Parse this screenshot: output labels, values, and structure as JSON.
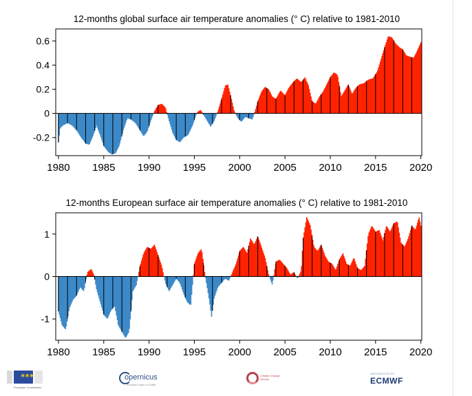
{
  "colors": {
    "warm": "#ff2200",
    "cold": "#3c89c8",
    "axis": "#000000"
  },
  "footer": {
    "eu": {
      "name": "European Commission"
    },
    "copernicus": {
      "word": "opernicus",
      "sub": "Europe's eyes on Earth"
    },
    "c3s": {
      "text": "Climate Change Service"
    },
    "ecmwf": {
      "top": "IMPLEMENTED BY",
      "word": "ECMWF"
    }
  },
  "chart_data": [
    {
      "type": "bar",
      "title": "12-months  global surface air temperature anomalies (° C) relative to 1981-2010",
      "xlabel": "",
      "ylabel": "",
      "xlim": [
        1979.7,
        2020.1
      ],
      "ylim": [
        -0.35,
        0.7
      ],
      "xticks": [
        1980,
        1985,
        1990,
        1995,
        2000,
        2005,
        2010,
        2015,
        2020
      ],
      "yticks": [
        -0.2,
        0,
        0.2,
        0.4,
        0.6
      ],
      "ytick_labels": [
        "-0.2",
        "0",
        "0.2",
        "0.4",
        "0.6"
      ],
      "grid": false,
      "series_points": [
        [
          1980.0,
          -0.24
        ],
        [
          1980.2,
          -0.12
        ],
        [
          1980.5,
          -0.1
        ],
        [
          1981.0,
          -0.08
        ],
        [
          1981.5,
          -0.1
        ],
        [
          1982.0,
          -0.14
        ],
        [
          1982.5,
          -0.2
        ],
        [
          1983.0,
          -0.25
        ],
        [
          1983.4,
          -0.26
        ],
        [
          1983.8,
          -0.19
        ],
        [
          1984.2,
          -0.1
        ],
        [
          1984.6,
          -0.18
        ],
        [
          1985.0,
          -0.27
        ],
        [
          1985.5,
          -0.32
        ],
        [
          1985.9,
          -0.34
        ],
        [
          1986.3,
          -0.33
        ],
        [
          1986.7,
          -0.27
        ],
        [
          1987.2,
          -0.13
        ],
        [
          1987.6,
          -0.04
        ],
        [
          1988.0,
          -0.05
        ],
        [
          1988.5,
          -0.08
        ],
        [
          1989.0,
          -0.14
        ],
        [
          1989.4,
          -0.19
        ],
        [
          1989.8,
          -0.15
        ],
        [
          1990.2,
          -0.06
        ],
        [
          1990.6,
          0.02
        ],
        [
          1991.0,
          0.07
        ],
        [
          1991.4,
          0.08
        ],
        [
          1991.8,
          0.05
        ],
        [
          1992.2,
          -0.06
        ],
        [
          1992.6,
          -0.16
        ],
        [
          1993.0,
          -0.22
        ],
        [
          1993.4,
          -0.24
        ],
        [
          1993.8,
          -0.2
        ],
        [
          1994.3,
          -0.18
        ],
        [
          1994.8,
          -0.1
        ],
        [
          1995.3,
          0.01
        ],
        [
          1995.7,
          0.03
        ],
        [
          1996.0,
          -0.01
        ],
        [
          1996.4,
          -0.06
        ],
        [
          1996.8,
          -0.11
        ],
        [
          1997.2,
          -0.06
        ],
        [
          1997.6,
          0.02
        ],
        [
          1998.0,
          0.12
        ],
        [
          1998.4,
          0.23
        ],
        [
          1998.7,
          0.24
        ],
        [
          1999.0,
          0.15
        ],
        [
          1999.4,
          0.02
        ],
        [
          1999.8,
          -0.04
        ],
        [
          2000.2,
          -0.07
        ],
        [
          2000.6,
          -0.03
        ],
        [
          2001.0,
          -0.04
        ],
        [
          2001.4,
          -0.05
        ],
        [
          2001.7,
          0.02
        ],
        [
          2002.0,
          0.1
        ],
        [
          2002.4,
          0.18
        ],
        [
          2002.8,
          0.22
        ],
        [
          2003.2,
          0.2
        ],
        [
          2003.6,
          0.14
        ],
        [
          2004.0,
          0.12
        ],
        [
          2004.5,
          0.19
        ],
        [
          2005.0,
          0.15
        ],
        [
          2005.4,
          0.21
        ],
        [
          2005.8,
          0.25
        ],
        [
          2006.3,
          0.29
        ],
        [
          2006.8,
          0.26
        ],
        [
          2007.2,
          0.3
        ],
        [
          2007.6,
          0.23
        ],
        [
          2008.0,
          0.1
        ],
        [
          2008.4,
          0.08
        ],
        [
          2008.8,
          0.14
        ],
        [
          2009.2,
          0.18
        ],
        [
          2009.6,
          0.24
        ],
        [
          2010.0,
          0.3
        ],
        [
          2010.4,
          0.34
        ],
        [
          2010.8,
          0.32
        ],
        [
          2011.2,
          0.14
        ],
        [
          2011.6,
          0.19
        ],
        [
          2012.0,
          0.24
        ],
        [
          2012.4,
          0.16
        ],
        [
          2012.8,
          0.21
        ],
        [
          2013.2,
          0.24
        ],
        [
          2013.7,
          0.25
        ],
        [
          2014.2,
          0.28
        ],
        [
          2014.7,
          0.29
        ],
        [
          2015.2,
          0.35
        ],
        [
          2015.6,
          0.45
        ],
        [
          2016.0,
          0.55
        ],
        [
          2016.4,
          0.64
        ],
        [
          2016.8,
          0.63
        ],
        [
          2017.2,
          0.58
        ],
        [
          2017.6,
          0.55
        ],
        [
          2018.0,
          0.53
        ],
        [
          2018.4,
          0.48
        ],
        [
          2018.8,
          0.47
        ],
        [
          2019.2,
          0.46
        ],
        [
          2019.6,
          0.52
        ],
        [
          2020.0,
          0.59
        ]
      ],
      "bar_years": [
        1980,
        1981,
        1982,
        1983,
        1984,
        1985,
        1986,
        1987,
        1988,
        1989,
        1990,
        1991,
        1992,
        1993,
        1994,
        1995,
        1996,
        1997,
        1998,
        1999,
        2000,
        2001,
        2002,
        2003,
        2004,
        2005,
        2006,
        2007,
        2008,
        2009,
        2010,
        2011,
        2012,
        2013,
        2014,
        2015,
        2016,
        2017,
        2018,
        2019
      ]
    },
    {
      "type": "bar",
      "title": "12-months  European surface air temperature anomalies (° C) relative to 1981-2010",
      "xlabel": "",
      "ylabel": "",
      "xlim": [
        1979.7,
        2020.1
      ],
      "ylim": [
        -1.5,
        1.5
      ],
      "xticks": [
        1980,
        1985,
        1990,
        1995,
        2000,
        2005,
        2010,
        2015,
        2020
      ],
      "yticks": [
        -1,
        0,
        1
      ],
      "ytick_labels": [
        "-1",
        "0",
        "1"
      ],
      "grid": false,
      "series_points": [
        [
          1980.0,
          -0.82
        ],
        [
          1980.4,
          -1.15
        ],
        [
          1980.8,
          -1.25
        ],
        [
          1981.2,
          -0.75
        ],
        [
          1981.6,
          -0.55
        ],
        [
          1982.0,
          -0.45
        ],
        [
          1982.4,
          -0.25
        ],
        [
          1982.8,
          -0.35
        ],
        [
          1983.2,
          0.1
        ],
        [
          1983.6,
          0.18
        ],
        [
          1983.9,
          0.05
        ],
        [
          1984.2,
          -0.3
        ],
        [
          1984.6,
          -0.6
        ],
        [
          1985.0,
          -0.9
        ],
        [
          1985.4,
          -1.0
        ],
        [
          1985.8,
          -0.8
        ],
        [
          1986.2,
          -0.7
        ],
        [
          1986.6,
          -1.15
        ],
        [
          1987.0,
          -1.3
        ],
        [
          1987.4,
          -1.45
        ],
        [
          1987.8,
          -1.3
        ],
        [
          1988.2,
          -0.35
        ],
        [
          1988.6,
          -0.2
        ],
        [
          1989.0,
          0.25
        ],
        [
          1989.4,
          0.55
        ],
        [
          1989.8,
          0.7
        ],
        [
          1990.2,
          0.65
        ],
        [
          1990.6,
          0.75
        ],
        [
          1991.0,
          0.5
        ],
        [
          1991.4,
          0.25
        ],
        [
          1991.8,
          -0.15
        ],
        [
          1992.2,
          -0.35
        ],
        [
          1992.6,
          -0.2
        ],
        [
          1993.0,
          -0.05
        ],
        [
          1993.4,
          -0.15
        ],
        [
          1993.8,
          -0.4
        ],
        [
          1994.2,
          -0.6
        ],
        [
          1994.6,
          -0.68
        ],
        [
          1995.0,
          0.3
        ],
        [
          1995.4,
          0.55
        ],
        [
          1995.8,
          0.65
        ],
        [
          1996.2,
          0.0
        ],
        [
          1996.6,
          -0.5
        ],
        [
          1996.9,
          -0.95
        ],
        [
          1997.2,
          -0.5
        ],
        [
          1997.6,
          -0.25
        ],
        [
          1998.0,
          -0.15
        ],
        [
          1998.4,
          -0.05
        ],
        [
          1998.8,
          -0.1
        ],
        [
          1999.2,
          0.1
        ],
        [
          1999.6,
          0.3
        ],
        [
          2000.0,
          0.6
        ],
        [
          2000.4,
          0.7
        ],
        [
          2000.8,
          0.55
        ],
        [
          2001.2,
          0.9
        ],
        [
          2001.6,
          0.75
        ],
        [
          2002.0,
          0.95
        ],
        [
          2002.4,
          0.7
        ],
        [
          2002.8,
          0.45
        ],
        [
          2003.2,
          0.05
        ],
        [
          2003.6,
          -0.2
        ],
        [
          2004.0,
          0.35
        ],
        [
          2004.4,
          0.4
        ],
        [
          2004.8,
          0.3
        ],
        [
          2005.2,
          0.2
        ],
        [
          2005.6,
          0.05
        ],
        [
          2006.0,
          0.1
        ],
        [
          2006.4,
          -0.05
        ],
        [
          2006.8,
          0.15
        ],
        [
          2007.0,
          0.9
        ],
        [
          2007.4,
          1.4
        ],
        [
          2007.8,
          1.2
        ],
        [
          2008.2,
          0.7
        ],
        [
          2008.6,
          0.6
        ],
        [
          2009.0,
          0.75
        ],
        [
          2009.4,
          0.5
        ],
        [
          2009.8,
          0.35
        ],
        [
          2010.2,
          0.3
        ],
        [
          2010.6,
          0.15
        ],
        [
          2011.0,
          0.4
        ],
        [
          2011.4,
          0.55
        ],
        [
          2011.8,
          0.3
        ],
        [
          2012.2,
          0.25
        ],
        [
          2012.6,
          0.45
        ],
        [
          2013.0,
          0.2
        ],
        [
          2013.4,
          0.15
        ],
        [
          2013.8,
          0.25
        ],
        [
          2014.2,
          1.0
        ],
        [
          2014.6,
          1.2
        ],
        [
          2015.0,
          1.05
        ],
        [
          2015.4,
          1.1
        ],
        [
          2015.8,
          0.85
        ],
        [
          2016.2,
          1.2
        ],
        [
          2016.6,
          1.05
        ],
        [
          2017.0,
          1.25
        ],
        [
          2017.4,
          1.3
        ],
        [
          2017.8,
          0.8
        ],
        [
          2018.2,
          0.7
        ],
        [
          2018.6,
          0.9
        ],
        [
          2019.0,
          1.2
        ],
        [
          2019.4,
          1.1
        ],
        [
          2019.8,
          1.4
        ],
        [
          2020.0,
          1.2
        ]
      ],
      "bar_years": [
        1980,
        1981,
        1982,
        1983,
        1984,
        1985,
        1986,
        1987,
        1988,
        1989,
        1990,
        1991,
        1992,
        1993,
        1994,
        1995,
        1996,
        1997,
        1998,
        1999,
        2000,
        2001,
        2002,
        2003,
        2004,
        2005,
        2006,
        2007,
        2008,
        2009,
        2010,
        2011,
        2012,
        2013,
        2014,
        2015,
        2016,
        2017,
        2018,
        2019
      ]
    }
  ]
}
